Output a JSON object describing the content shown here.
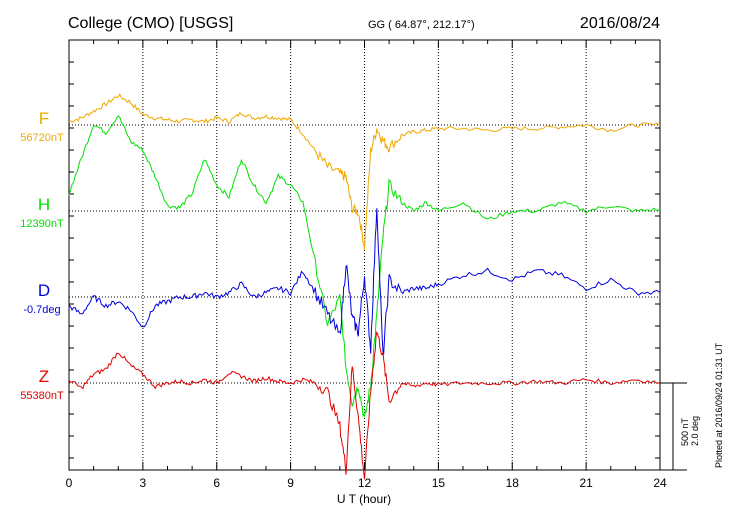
{
  "header": {
    "station": "College (CMO)  [USGS]",
    "coords": "GG ( 64.87°, 212.17°)",
    "date": "2016/08/24"
  },
  "side": {
    "plotted": "Plotted at 2016/09/24 01:31 UT",
    "scale_nt": "500 nT",
    "scale_deg": "2.0 deg"
  },
  "chart_data": {
    "type": "line",
    "title": "College (CMO)  [USGS]",
    "xlabel": "U T (hour)",
    "ylabel": "",
    "xlim": [
      0,
      24
    ],
    "x_ticks": [
      "0",
      "3",
      "6",
      "9",
      "12",
      "15",
      "18",
      "21",
      "24"
    ],
    "grid": true,
    "series": [
      {
        "name": "F",
        "base_label": "56720nT",
        "color": "#f0a800",
        "x": [
          0,
          0.5,
          1,
          1.5,
          2,
          2.5,
          3,
          3.5,
          4,
          4.5,
          5,
          5.5,
          6,
          6.5,
          7,
          7.5,
          8,
          8.5,
          9,
          9.5,
          10,
          10.5,
          11,
          11.25,
          11.5,
          11.75,
          12,
          12.25,
          12.5,
          12.75,
          13,
          13.5,
          14,
          14.5,
          15,
          16,
          17,
          18,
          19,
          20,
          21,
          22,
          23,
          24
        ],
        "values": [
          20,
          40,
          80,
          120,
          170,
          130,
          60,
          40,
          30,
          20,
          30,
          20,
          40,
          20,
          70,
          40,
          50,
          40,
          30,
          -50,
          -150,
          -240,
          -280,
          -300,
          -480,
          -500,
          -700,
          -150,
          -20,
          -90,
          -130,
          -60,
          -40,
          -30,
          -20,
          -20,
          -30,
          -20,
          -20,
          -10,
          0,
          -30,
          0,
          0
        ]
      },
      {
        "name": "H",
        "base_label": "12390nT",
        "color": "#00e000",
        "x": [
          0,
          0.5,
          1,
          1.5,
          2,
          2.5,
          3,
          3.5,
          4,
          4.5,
          5,
          5.5,
          6,
          6.5,
          7,
          7.5,
          8,
          8.5,
          9,
          9.5,
          10,
          10.5,
          11,
          11.25,
          11.5,
          11.75,
          12,
          12.25,
          12.5,
          12.75,
          13,
          13.5,
          14,
          14.5,
          15,
          16,
          17,
          18,
          19,
          20,
          21,
          22,
          23,
          24
        ],
        "values": [
          100,
          300,
          500,
          450,
          550,
          400,
          350,
          200,
          30,
          20,
          100,
          300,
          150,
          80,
          300,
          150,
          50,
          200,
          150,
          50,
          -300,
          -650,
          -500,
          -900,
          -1100,
          -1000,
          -1200,
          -1000,
          -600,
          -150,
          150,
          50,
          0,
          50,
          0,
          50,
          -50,
          0,
          0,
          50,
          0,
          30,
          0,
          10
        ]
      },
      {
        "name": "D",
        "base_label": "-0.7deg",
        "color": "#0000e0",
        "x": [
          0,
          0.5,
          1,
          1.5,
          2,
          2.5,
          3,
          3.5,
          4,
          4.5,
          5,
          5.5,
          6,
          6.5,
          7,
          7.5,
          8,
          8.5,
          9,
          9.5,
          10,
          10.5,
          11,
          11.25,
          11.5,
          11.75,
          12,
          12.25,
          12.5,
          12.75,
          13,
          13.5,
          14,
          14.5,
          15,
          16,
          17,
          18,
          19,
          20,
          21,
          22,
          23,
          24
        ],
        "values": [
          -0.2,
          -0.4,
          0,
          -0.2,
          -0.1,
          -0.3,
          -0.7,
          -0.2,
          -0.1,
          0,
          0,
          0.1,
          0,
          0.1,
          0.3,
          0,
          0.1,
          0.2,
          0.1,
          0.6,
          0.1,
          -0.4,
          -0.9,
          0.8,
          -0.5,
          -0.8,
          0.5,
          -1.2,
          2.1,
          -1.4,
          0.4,
          0.1,
          0.2,
          0.2,
          0.3,
          0.5,
          0.6,
          0.4,
          0.6,
          0.5,
          0.2,
          0.4,
          0.1,
          0.1
        ]
      },
      {
        "name": "Z",
        "base_label": "55380nT",
        "color": "#e00000",
        "x": [
          0,
          0.5,
          1,
          1.5,
          2,
          2.5,
          3,
          3.5,
          4,
          4.5,
          5,
          5.5,
          6,
          6.5,
          7,
          7.5,
          8,
          8.5,
          9,
          9.5,
          10,
          10.5,
          11,
          11.25,
          11.5,
          11.75,
          12,
          12.25,
          12.5,
          12.75,
          13,
          13.5,
          14,
          14.5,
          15,
          16,
          17,
          18,
          19,
          20,
          21,
          22,
          23,
          24
        ],
        "values": [
          20,
          -30,
          50,
          80,
          180,
          100,
          50,
          -20,
          0,
          10,
          0,
          20,
          0,
          60,
          40,
          10,
          30,
          10,
          0,
          20,
          0,
          -50,
          -250,
          -500,
          100,
          -200,
          -550,
          -50,
          300,
          150,
          -100,
          0,
          -20,
          0,
          -10,
          0,
          0,
          0,
          10,
          0,
          20,
          0,
          20,
          0
        ]
      }
    ]
  }
}
